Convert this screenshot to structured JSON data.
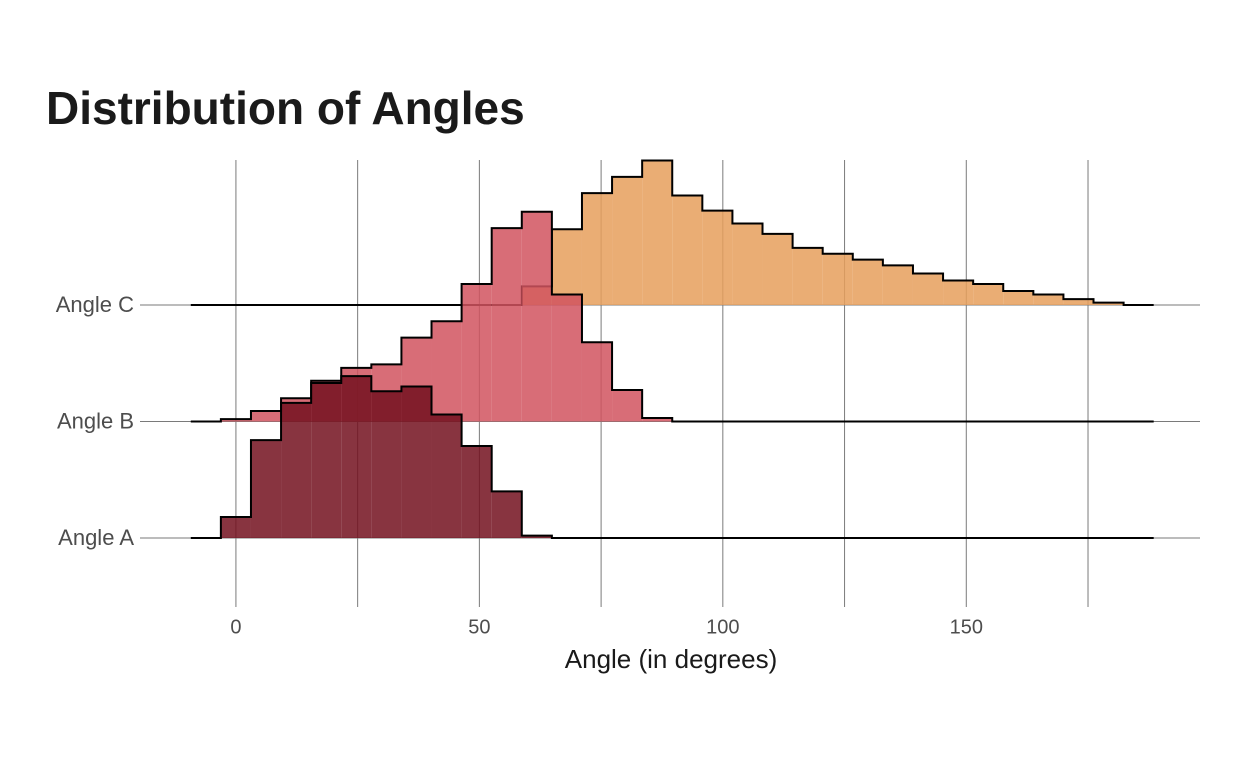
{
  "chart_data": {
    "type": "ridgeline-histogram",
    "title": "Distribution of Angles",
    "x_label": "Angle (in degrees)",
    "bins": [
      -9.27,
      -3.09,
      3.09,
      9.27,
      15.45,
      21.63,
      27.81,
      33.99,
      40.17,
      46.35,
      52.53,
      58.71,
      64.89,
      71.07,
      77.25,
      83.43,
      89.61,
      95.79,
      101.97,
      108.15,
      114.33,
      120.51,
      126.69,
      132.87,
      139.05,
      145.23,
      151.41,
      157.59,
      163.77,
      169.95,
      176.13,
      182.31,
      188.49
    ],
    "series": [
      {
        "name": "Angle A",
        "color": "#73101f",
        "values": [
          0,
          0.18,
          0.84,
          1.16,
          1.33,
          1.39,
          1.26,
          1.3,
          1.06,
          0.79,
          0.4,
          0.02,
          0,
          0,
          0,
          0,
          0,
          0,
          0,
          0,
          0,
          0,
          0,
          0,
          0,
          0,
          0,
          0,
          0,
          0,
          0,
          0
        ]
      },
      {
        "name": "Angle B",
        "color": "#d1535f",
        "values": [
          0,
          0.02,
          0.09,
          0.2,
          0.35,
          0.46,
          0.49,
          0.72,
          0.86,
          1.18,
          1.66,
          1.8,
          1.09,
          0.68,
          0.27,
          0.03,
          0,
          0,
          0,
          0,
          0,
          0,
          0,
          0,
          0,
          0,
          0,
          0,
          0,
          0,
          0,
          0
        ]
      },
      {
        "name": "Angle C",
        "color": "#e69f5c",
        "values": [
          0,
          0,
          0,
          0,
          0,
          0,
          0,
          0,
          0,
          0,
          0,
          0.16,
          0.65,
          0.96,
          1.1,
          1.24,
          0.94,
          0.81,
          0.7,
          0.61,
          0.49,
          0.44,
          0.39,
          0.34,
          0.27,
          0.21,
          0.18,
          0.12,
          0.09,
          0.05,
          0.02,
          0
        ]
      }
    ],
    "xlim": [
      -19.7,
      198
    ],
    "xticks": [
      0,
      50,
      100,
      150
    ],
    "xminorticks": [
      25,
      75,
      125,
      175
    ],
    "grid": true
  }
}
